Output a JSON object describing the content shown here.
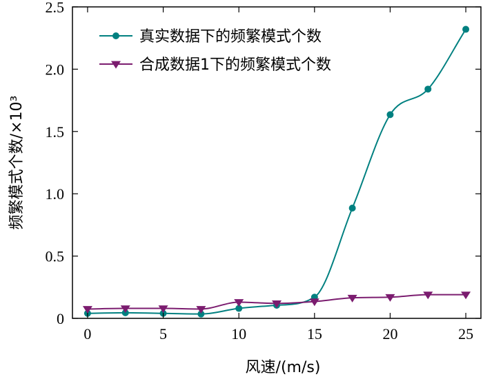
{
  "chart_data": {
    "type": "line",
    "xlabel": "风速/(m/s)",
    "ylabel": "频繁模式个数/×10³",
    "xlim": [
      -1,
      26
    ],
    "ylim": [
      0,
      2.5
    ],
    "xticks": [
      0,
      5,
      10,
      15,
      20,
      25
    ],
    "yticks": [
      0,
      0.5,
      1.0,
      1.5,
      2.0,
      2.5
    ],
    "xtick_labels": [
      "0",
      "5",
      "10",
      "15",
      "20",
      "25"
    ],
    "ytick_labels": [
      "0",
      "0.5",
      "1.0",
      "1.5",
      "2.0",
      "2.5"
    ],
    "grid": false,
    "legend_position": "top-left",
    "x": [
      0,
      2.5,
      5,
      7.5,
      10,
      12.5,
      15,
      17.5,
      20,
      22.5,
      25
    ],
    "series": [
      {
        "name": "真实数据下的频繁模式个数",
        "color": "#008080",
        "marker": "circle",
        "values": [
          0.04,
          0.045,
          0.04,
          0.035,
          0.08,
          0.105,
          0.17,
          0.885,
          1.635,
          1.84,
          2.32
        ]
      },
      {
        "name": "合成数据1下的频繁模式个数",
        "color": "#7b1c6f",
        "marker": "triangle-down",
        "values": [
          0.075,
          0.08,
          0.08,
          0.075,
          0.13,
          0.12,
          0.135,
          0.165,
          0.17,
          0.19,
          0.19
        ]
      }
    ]
  }
}
